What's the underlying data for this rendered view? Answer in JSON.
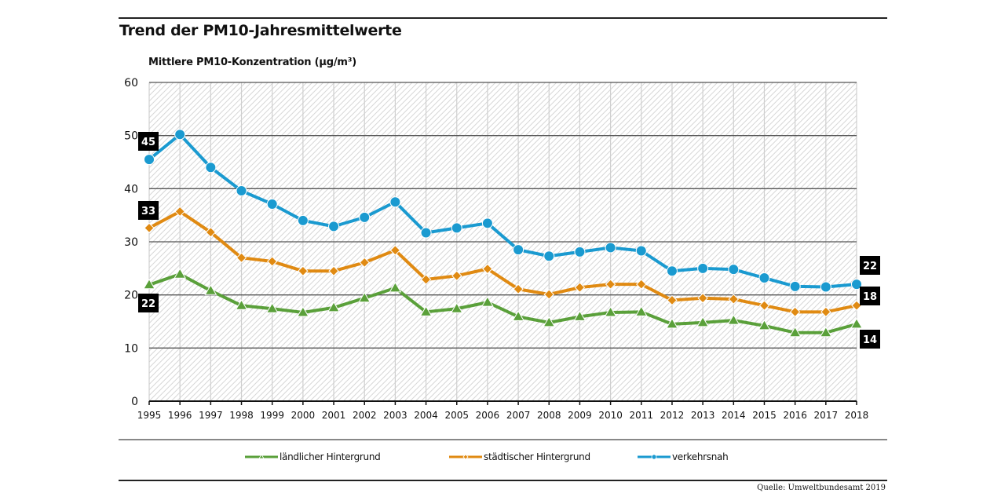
{
  "chart_data": {
    "type": "line",
    "title": "Trend der PM10-Jahresmittelwerte",
    "ylabel": "Mittlere PM10-Konzentration (µg/m³)",
    "xlabel": "",
    "ylim": [
      0,
      60
    ],
    "yticks": [
      0,
      10,
      20,
      30,
      40,
      50,
      60
    ],
    "grid": true,
    "x": [
      "1995",
      "1996",
      "1997",
      "1998",
      "1999",
      "2000",
      "2001",
      "2002",
      "2003",
      "2004",
      "2005",
      "2006",
      "2007",
      "2008",
      "2009",
      "2010",
      "2011",
      "2012",
      "2013",
      "2014",
      "2015",
      "2016",
      "2017",
      "2018"
    ],
    "series": [
      {
        "name": "ländlicher Hintergrund",
        "color": "#5aa03a",
        "marker": "triangle",
        "values": [
          21.9,
          23.9,
          20.8,
          18.0,
          17.4,
          16.7,
          17.6,
          19.4,
          21.3,
          16.8,
          17.4,
          18.6,
          15.9,
          14.8,
          15.9,
          16.7,
          16.8,
          14.5,
          14.8,
          15.2,
          14.2,
          12.9,
          12.9,
          14.5
        ],
        "start_label": "22",
        "end_label": "14"
      },
      {
        "name": "städtischer Hintergrund",
        "color": "#e08a12",
        "marker": "diamond",
        "values": [
          32.6,
          35.7,
          31.8,
          27.0,
          26.3,
          24.5,
          24.5,
          26.1,
          28.4,
          22.9,
          23.6,
          24.9,
          21.1,
          20.1,
          21.4,
          22.0,
          22.0,
          19.0,
          19.4,
          19.2,
          18.0,
          16.8,
          16.8,
          18.0
        ],
        "start_label": "33",
        "end_label": "18"
      },
      {
        "name": "verkehrsnah",
        "color": "#1a9ad0",
        "marker": "circle",
        "values": [
          45.5,
          50.2,
          44.0,
          39.6,
          37.1,
          34.0,
          32.9,
          34.6,
          37.5,
          31.7,
          32.6,
          33.5,
          28.5,
          27.3,
          28.1,
          28.9,
          28.3,
          24.5,
          25.0,
          24.8,
          23.2,
          21.6,
          21.5,
          22.0
        ],
        "start_label": "45",
        "end_label": "22"
      }
    ],
    "legend_position": "bottom",
    "source": "Quelle: Umweltbundesamt 2019"
  }
}
